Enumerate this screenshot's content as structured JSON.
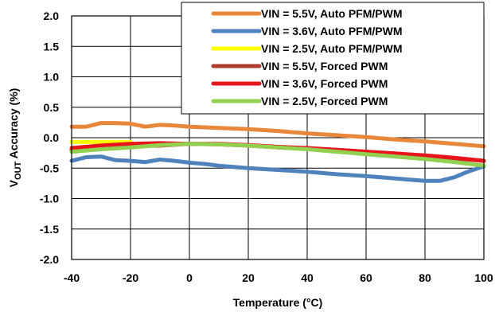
{
  "chart_data": {
    "type": "line",
    "title": "",
    "xlabel": "Temperature (°C)",
    "ylabel_main": "V",
    "ylabel_sub": "OUT",
    "ylabel_rest": " Accuracy (%)",
    "xlim": [
      -40,
      100
    ],
    "ylim": [
      -2.0,
      2.0
    ],
    "x_ticks": [
      -40,
      -20,
      0,
      20,
      40,
      60,
      80,
      100
    ],
    "x_tick_labels": [
      "-40",
      "-20",
      "0",
      "20",
      "40",
      "60",
      "80",
      "100"
    ],
    "y_ticks": [
      2.0,
      1.5,
      1.0,
      0.5,
      0.0,
      -0.5,
      -1.0,
      -1.5,
      -2.0
    ],
    "y_tick_labels": [
      "2.0",
      "1.5",
      "1.0",
      "0.5",
      "0.0",
      "-0.5",
      "-1.0",
      "-1.5",
      "-2.0"
    ],
    "grid": true,
    "legend_position": "top-right",
    "series": [
      {
        "name": "VIN = 5.5V, Auto PFM/PWM",
        "color": "#E8873A",
        "x": [
          -40,
          -35,
          -30,
          -25,
          -20,
          -15,
          -10,
          -5,
          0,
          10,
          20,
          30,
          40,
          50,
          60,
          70,
          80,
          90,
          100
        ],
        "y": [
          0.18,
          0.18,
          0.24,
          0.24,
          0.23,
          0.18,
          0.21,
          0.2,
          0.18,
          0.16,
          0.14,
          0.11,
          0.07,
          0.04,
          0.01,
          -0.03,
          -0.06,
          -0.1,
          -0.14
        ]
      },
      {
        "name": "VIN = 3.6V, Auto PFM/PWM",
        "color": "#4F81BD",
        "x": [
          -40,
          -35,
          -30,
          -25,
          -20,
          -15,
          -10,
          -5,
          0,
          5,
          10,
          20,
          30,
          40,
          50,
          60,
          70,
          80,
          85,
          90,
          95,
          100
        ],
        "y": [
          -0.38,
          -0.32,
          -0.31,
          -0.37,
          -0.38,
          -0.4,
          -0.36,
          -0.38,
          -0.41,
          -0.43,
          -0.46,
          -0.5,
          -0.53,
          -0.56,
          -0.6,
          -0.63,
          -0.67,
          -0.71,
          -0.71,
          -0.65,
          -0.55,
          -0.47
        ]
      },
      {
        "name": "VIN = 2.5V, Auto PFM/PWM",
        "color": "#FFFF00",
        "x": [
          -40,
          -35,
          -30,
          -25,
          -20
        ],
        "y": [
          -0.07,
          -0.07,
          -0.07,
          -0.07,
          -0.07
        ]
      },
      {
        "name": "VIN = 5.5V, Forced PWM",
        "color": "#B03A2E",
        "x": [
          -40,
          -30,
          -20,
          -10,
          0,
          10,
          20,
          30,
          40,
          50,
          60,
          70,
          80,
          90,
          100
        ],
        "y": [
          -0.2,
          -0.16,
          -0.14,
          -0.13,
          -0.1,
          -0.11,
          -0.13,
          -0.16,
          -0.18,
          -0.2,
          -0.23,
          -0.26,
          -0.3,
          -0.34,
          -0.38
        ]
      },
      {
        "name": "VIN = 3.6V, Forced PWM",
        "color": "#E8141B",
        "x": [
          -40,
          -30,
          -20,
          -10,
          0,
          10,
          20,
          30,
          40,
          50,
          60,
          70,
          80,
          90,
          100
        ],
        "y": [
          -0.17,
          -0.13,
          -0.1,
          -0.09,
          -0.1,
          -0.1,
          -0.12,
          -0.15,
          -0.17,
          -0.2,
          -0.23,
          -0.26,
          -0.29,
          -0.33,
          -0.38
        ]
      },
      {
        "name": "VIN = 2.5V, Forced PWM",
        "color": "#92D050",
        "x": [
          -40,
          -30,
          -20,
          -10,
          0,
          10,
          20,
          30,
          40,
          50,
          60,
          70,
          80,
          90,
          100
        ],
        "y": [
          -0.23,
          -0.19,
          -0.16,
          -0.12,
          -0.1,
          -0.11,
          -0.13,
          -0.16,
          -0.19,
          -0.23,
          -0.27,
          -0.31,
          -0.35,
          -0.4,
          -0.46
        ]
      }
    ]
  }
}
